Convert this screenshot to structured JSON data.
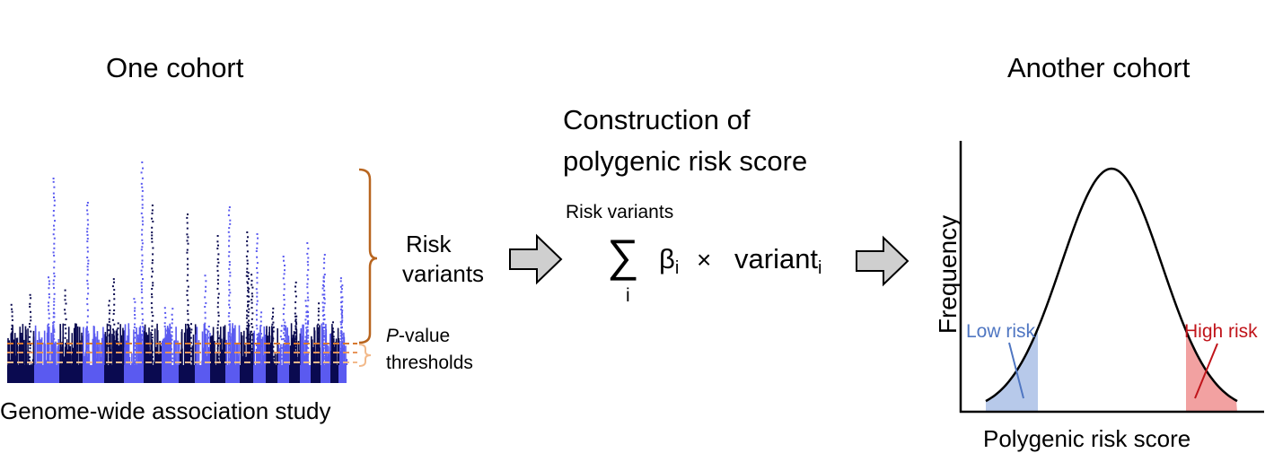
{
  "left": {
    "title": "One cohort",
    "caption": "Genome-wide association study",
    "bracket_label_line1": "Risk",
    "bracket_label_line2": "variants",
    "threshold_label_p": "P",
    "threshold_label_value": "-value",
    "threshold_label_line2": "thresholds"
  },
  "middle": {
    "title_line1": "Construction of",
    "title_line2": "polygenic risk score",
    "variants_label": "Risk variants",
    "sum_symbol": "∑",
    "sum_index": "i",
    "beta": "β",
    "beta_sub": "i",
    "times": "×",
    "variant": "variant",
    "variant_sub": "i"
  },
  "right": {
    "title": "Another cohort",
    "ylabel": "Frequency",
    "xlabel": "Polygenic risk score",
    "low_risk": "Low risk",
    "high_risk": "High risk"
  },
  "colors": {
    "manhattan_dark": "#0a0a50",
    "manhattan_light": "#5a5af0",
    "bracket": "#b8651f",
    "threshold_orange": "#d8782e",
    "threshold_light": "#f2b98a",
    "arrow_fill": "#cfcfcf",
    "low_risk": "#4f76c2",
    "low_fill": "#b7c9ea",
    "high_risk": "#c0141a",
    "high_fill": "#f2a1a1"
  }
}
